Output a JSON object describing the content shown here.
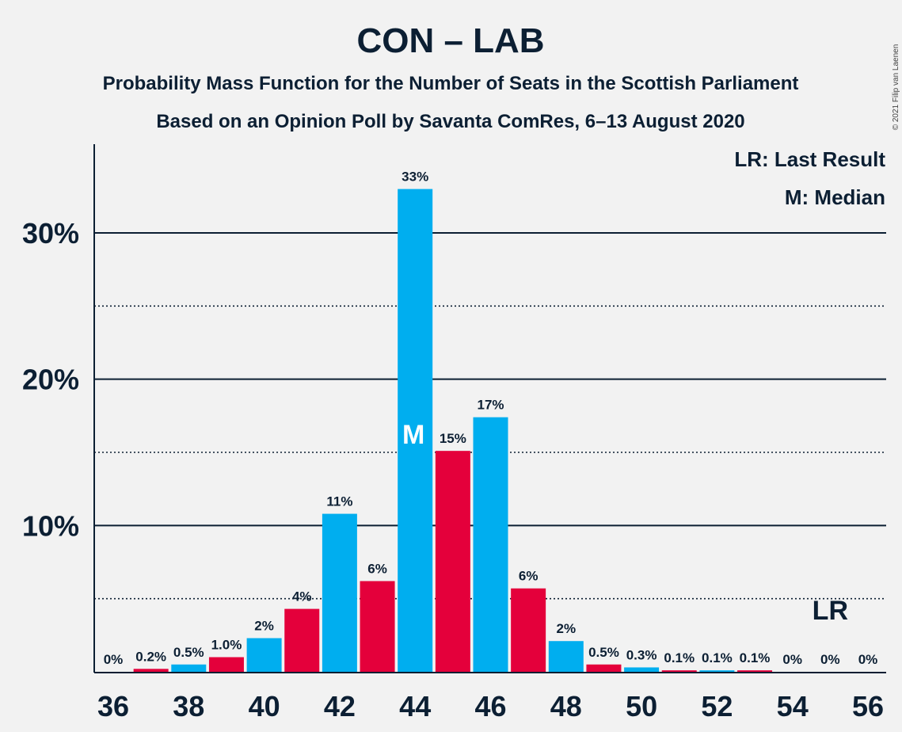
{
  "chart_data": {
    "type": "bar",
    "title": "CON – LAB",
    "subtitle_1": "Probability Mass Function for the Number of Seats in the Scottish Parliament",
    "subtitle_2": "Based on an Opinion Poll by Savanta ComRes, 6–13 August 2020",
    "legend": [
      "LR: Last Result",
      "M: Median"
    ],
    "copyright": "© 2021 Filip van Laenen",
    "x": [
      36,
      37,
      38,
      39,
      40,
      41,
      42,
      43,
      44,
      45,
      46,
      47,
      48,
      49,
      50,
      51,
      52,
      53,
      54,
      55,
      56
    ],
    "values": [
      0,
      0.2,
      0.5,
      1.0,
      2.3,
      4.3,
      10.8,
      6.2,
      33.0,
      15.1,
      17.4,
      5.7,
      2.1,
      0.5,
      0.3,
      0.1,
      0.1,
      0.1,
      0,
      0,
      0
    ],
    "data_labels": [
      "0%",
      "0.2%",
      "0.5%",
      "1.0%",
      "2%",
      "4%",
      "11%",
      "6%",
      "33%",
      "15%",
      "17%",
      "6%",
      "2%",
      "0.5%",
      "0.3%",
      "0.1%",
      "0.1%",
      "0.1%",
      "0%",
      "0%",
      "0%"
    ],
    "x_tick_labels": [
      "36",
      "38",
      "40",
      "42",
      "44",
      "46",
      "48",
      "50",
      "52",
      "54",
      "56"
    ],
    "y_tick_labels": [
      "10%",
      "20%",
      "30%"
    ],
    "y_ticks": [
      10,
      20,
      30
    ],
    "y_minor_ticks": [
      5,
      15,
      25
    ],
    "ylim": [
      0,
      36
    ],
    "median_seat": 44,
    "median_marker": "M",
    "last_result_seat": 55,
    "last_result_marker": "LR",
    "colors": {
      "even": "#00aeef",
      "odd": "#e4003b",
      "text": "#0c1f33",
      "background": "#f2f2f2"
    },
    "grid": true,
    "legend_position": "top-right"
  }
}
